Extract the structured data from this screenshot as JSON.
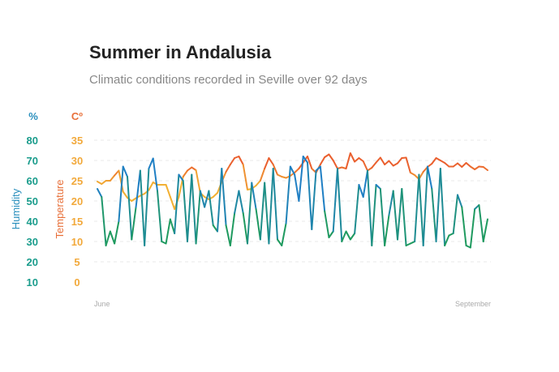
{
  "title": "Summer in Andalusia",
  "subtitle": "Climatic conditions recorded in Seville over 92 days",
  "colors": {
    "humidity_axis": "#2a8fbd",
    "humidity_tick": "#1a9c8c",
    "temp_unit": "#e8703a",
    "temp_tick": "#f2a93b",
    "grid": "#e8e8e8"
  },
  "chart_data": {
    "type": "line",
    "x_start_label": "June",
    "x_end_label": "September",
    "axes": {
      "humidity": {
        "label": "Humidity",
        "unit": "%",
        "range": [
          10,
          80
        ],
        "ticks": [
          10,
          20,
          30,
          40,
          50,
          60,
          70,
          80
        ]
      },
      "temperature": {
        "label": "Temperature",
        "unit": "Cº",
        "range": [
          0,
          35
        ],
        "ticks": [
          0,
          5,
          10,
          15,
          20,
          25,
          30,
          35
        ]
      }
    },
    "gridlines": true,
    "series": [
      {
        "axis": "humidity",
        "values": [
          56,
          52,
          28,
          35,
          29,
          40,
          67,
          62,
          31,
          47,
          65,
          28,
          66,
          71,
          55,
          30,
          29,
          41,
          34,
          63,
          60,
          30,
          63,
          29,
          55,
          47,
          55,
          38,
          35,
          66,
          38,
          28,
          44,
          55,
          44,
          29,
          59,
          46,
          31,
          59,
          29,
          66,
          31,
          28,
          39,
          67,
          63,
          50,
          72,
          69,
          36,
          65,
          67,
          45,
          32,
          35,
          66,
          30,
          35,
          31,
          34,
          58,
          52,
          65,
          28,
          58,
          56,
          28,
          43,
          55,
          31,
          56,
          28,
          29,
          30,
          63,
          28,
          67,
          56,
          30,
          66,
          28,
          33,
          34,
          53,
          47,
          28,
          27,
          46,
          48,
          30,
          41
        ]
      },
      {
        "axis": "temperature",
        "values": [
          24.8,
          24.2,
          25,
          25,
          26.3,
          27.5,
          22.3,
          20.8,
          20,
          20.7,
          21.3,
          21.8,
          22.7,
          24.6,
          24,
          24,
          24,
          21,
          18,
          21,
          26,
          27.5,
          28.3,
          27.6,
          22,
          21,
          20.4,
          21,
          22,
          24.7,
          27.2,
          29,
          30.6,
          31,
          29,
          22.8,
          23,
          23.8,
          25,
          28,
          30.6,
          29,
          26.5,
          26,
          25.7,
          26.2,
          27,
          28,
          29.5,
          31,
          28,
          27,
          29,
          30.8,
          31.5,
          30,
          28,
          28.3,
          28,
          31.8,
          29.7,
          30.6,
          29.8,
          27.5,
          28.2,
          29.5,
          30.7,
          29,
          29.9,
          28.7,
          29.3,
          30.6,
          30.7,
          27,
          26.4,
          25.4,
          27.2,
          28.4,
          29.2,
          30.6,
          30,
          29.4,
          28.5,
          28.5,
          29.3,
          28.4,
          29.4,
          28.5,
          27.8,
          28.5,
          28.4,
          27.6
        ]
      }
    ]
  }
}
